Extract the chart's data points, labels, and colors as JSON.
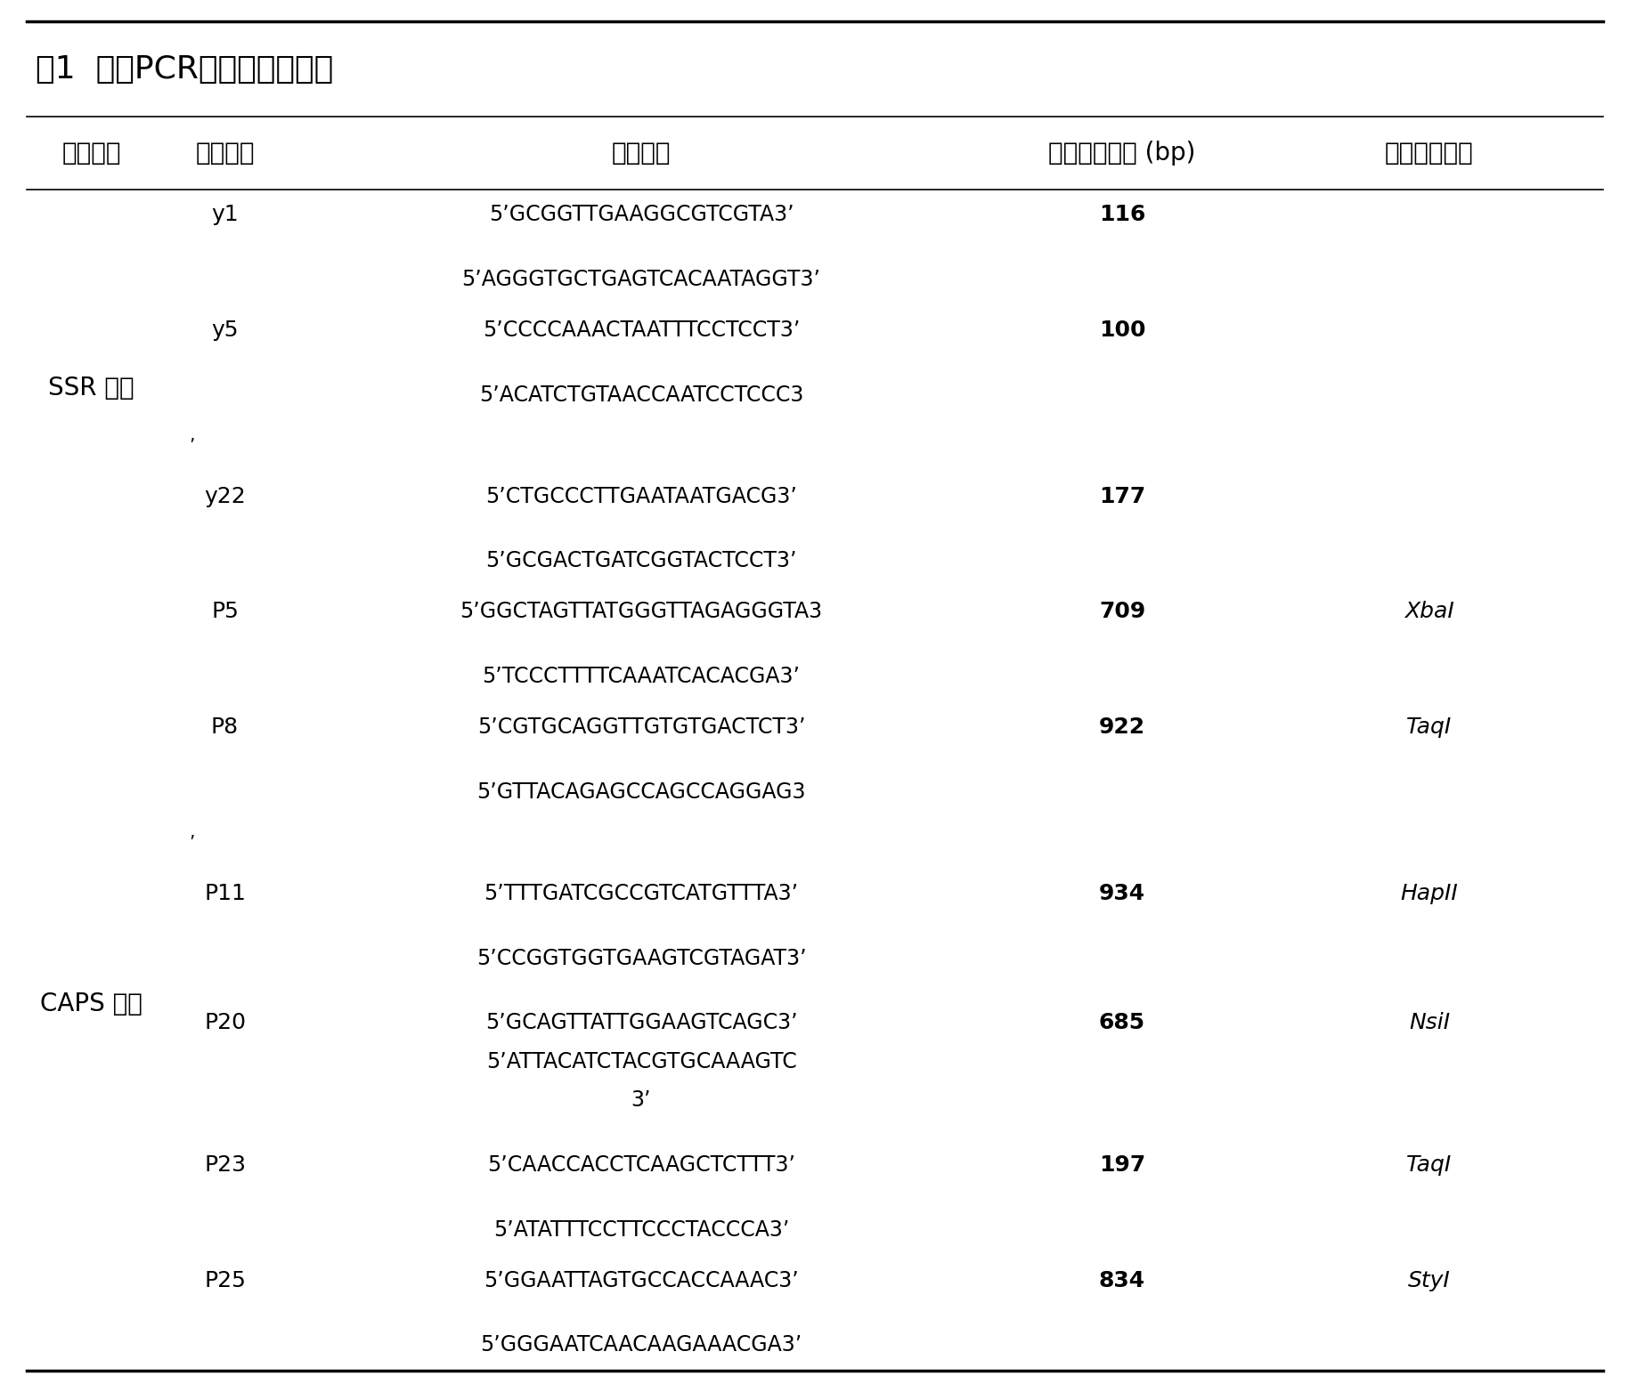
{
  "title": "表1  基于PCR基础的分子标记",
  "headers": [
    "标记类型",
    "标记名称",
    "引物序列",
    "扩增片断大小 (bp)",
    "限制性内切酶"
  ],
  "rows": [
    {
      "name": "y1",
      "primers": [
        "5’GCGGTTGAAGGCGTCGTA3’",
        "5’AGGGTGCTGAGTCACAATAGGT3’"
      ],
      "size": "116",
      "enzyme": ""
    },
    {
      "name": "y5",
      "primers": [
        "5’CCCCAAACTAATTTCCTCCT3’",
        "5’ACATCTGTAACCAATCCTCCC3"
      ],
      "size": "100",
      "enzyme": ""
    },
    {
      "name": "y22",
      "primers": [
        "5’CTGCCCTTGAATAATGACG3’",
        "5’GCGACTGATCGGTACTCCT3’"
      ],
      "size": "177",
      "enzyme": ""
    },
    {
      "name": "P5",
      "primers": [
        "5’GGCTAGTTATGGGTTAGAGGGTA3",
        "5’TCCCTTTTCAAATCACACGA3’"
      ],
      "size": "709",
      "enzyme": "XbaI"
    },
    {
      "name": "P8",
      "primers": [
        "5’CGTGCAGGTTGTGTGACTCT3’",
        "5’GTTACAGAGCCAGCCAGGAG3"
      ],
      "size": "922",
      "enzyme": "TaqI"
    },
    {
      "name": "P11",
      "primers": [
        "5’TTTGATCGCCGTCATGTTTA3’",
        "5’CCGGTGGTGAAGTCGTAGAT3’"
      ],
      "size": "934",
      "enzyme": "HapII"
    },
    {
      "name": "P20",
      "primers": [
        "5’GCAGTTATTGGAAGTCAGC3’",
        "5’ATTACATCTACGTGCAAAGTC",
        "3’"
      ],
      "size": "685",
      "enzyme": "NsiI"
    },
    {
      "name": "P23",
      "primers": [
        "5’CAACCACCTCAAGCTCTTT3’",
        "5’ATATTTCCTTCCCTACCCA3’"
      ],
      "size": "197",
      "enzyme": "TaqI"
    },
    {
      "name": "P25",
      "primers": [
        "5’GGAATTAGTGCCACCAAAC3’",
        "5’GGGAATCAACAAGAAACGA3’"
      ],
      "size": "834",
      "enzyme": "StyI"
    }
  ],
  "ssr_rows": [
    0,
    1,
    2
  ],
  "caps_rows": [
    3,
    4,
    5,
    6,
    7,
    8
  ],
  "ssr_label": "SSR 标记",
  "caps_label": "CAPS 标记",
  "apostrophe_rows": [
    1,
    4
  ],
  "background_color": "#ffffff"
}
